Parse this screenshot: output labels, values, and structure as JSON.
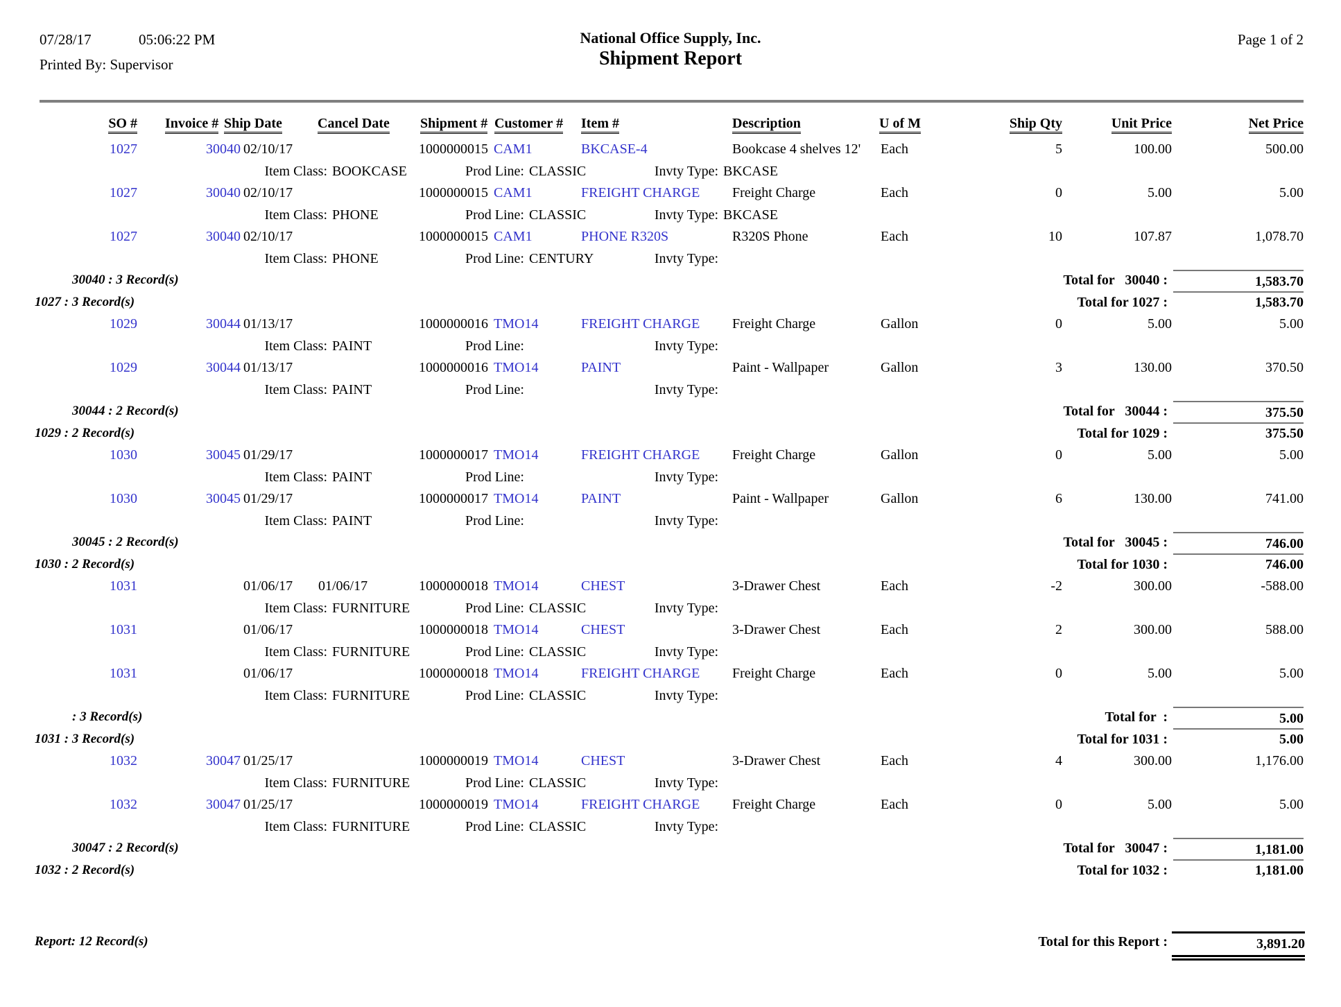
{
  "meta": {
    "date": "07/28/17",
    "time": "05:06:22 PM",
    "printed_by": "Printed By: Supervisor",
    "company": "National Office Supply, Inc.",
    "title": "Shipment Report",
    "page": "Page 1 of 2"
  },
  "columns": [
    "SO #",
    "Invoice #",
    "Ship Date",
    "Cancel Date",
    "Shipment #",
    "Customer #",
    "Item #",
    "Description",
    "U of M",
    "Ship Qty",
    "Unit Price",
    "Net Price"
  ],
  "labels": {
    "item_class": "Item Class:",
    "prod_line": "Prod Line:",
    "invty_type": "Invty Type:"
  },
  "colors": {
    "link_blue": "#3333CC",
    "rule_gray": "#808080"
  },
  "lines": [
    {
      "type": "item",
      "so": "1027",
      "invoice": "30040",
      "ship_date": "02/10/17",
      "cancel_date": "",
      "shipment": "1000000015",
      "customer": "CAM1",
      "item": "BKCASE-4",
      "desc": "Bookcase 4 shelves 12'",
      "uom": "Each",
      "qty": "5",
      "unit": "100.00",
      "net": "500.00"
    },
    {
      "type": "sub",
      "item_class": "BOOKCASE",
      "prod_line": "CLASSIC",
      "invty_type": "BKCASE"
    },
    {
      "type": "item",
      "so": "1027",
      "invoice": "30040",
      "ship_date": "02/10/17",
      "cancel_date": "",
      "shipment": "1000000015",
      "customer": "CAM1",
      "item": "FREIGHT CHARGE",
      "desc": "Freight Charge",
      "uom": "Each",
      "qty": "0",
      "unit": "5.00",
      "net": "5.00"
    },
    {
      "type": "sub",
      "item_class": "PHONE",
      "prod_line": "CLASSIC",
      "invty_type": "BKCASE"
    },
    {
      "type": "item",
      "so": "1027",
      "invoice": "30040",
      "ship_date": "02/10/17",
      "cancel_date": "",
      "shipment": "1000000015",
      "customer": "CAM1",
      "item": "PHONE R320S",
      "desc": "R320S Phone",
      "uom": "Each",
      "qty": "10",
      "unit": "107.87",
      "net": "1,078.70"
    },
    {
      "type": "sub",
      "item_class": "PHONE",
      "prod_line": "CENTURY",
      "invty_type": ""
    },
    {
      "type": "invoice_total",
      "left": "30040 : 3 Record(s)",
      "label": "Total for   30040 :",
      "amount": "1,583.70"
    },
    {
      "type": "so_total",
      "left": "1027 : 3 Record(s)",
      "label": "Total for 1027 :",
      "amount": "1,583.70"
    },
    {
      "type": "item",
      "so": "1029",
      "invoice": "30044",
      "ship_date": "01/13/17",
      "cancel_date": "",
      "shipment": "1000000016",
      "customer": "TMO14",
      "item": "FREIGHT CHARGE",
      "desc": "Freight Charge",
      "uom": "Gallon",
      "qty": "0",
      "unit": "5.00",
      "net": "5.00"
    },
    {
      "type": "sub",
      "item_class": "PAINT",
      "prod_line": "",
      "invty_type": ""
    },
    {
      "type": "item",
      "so": "1029",
      "invoice": "30044",
      "ship_date": "01/13/17",
      "cancel_date": "",
      "shipment": "1000000016",
      "customer": "TMO14",
      "item": "PAINT",
      "desc": "Paint - Wallpaper",
      "uom": "Gallon",
      "qty": "3",
      "unit": "130.00",
      "net": "370.50"
    },
    {
      "type": "sub",
      "item_class": "PAINT",
      "prod_line": "",
      "invty_type": ""
    },
    {
      "type": "invoice_total",
      "left": "30044 : 2 Record(s)",
      "label": "Total for   30044 :",
      "amount": "375.50"
    },
    {
      "type": "so_total",
      "left": "1029 : 2 Record(s)",
      "label": "Total for 1029 :",
      "amount": "375.50"
    },
    {
      "type": "item",
      "so": "1030",
      "invoice": "30045",
      "ship_date": "01/29/17",
      "cancel_date": "",
      "shipment": "1000000017",
      "customer": "TMO14",
      "item": "FREIGHT CHARGE",
      "desc": "Freight Charge",
      "uom": "Gallon",
      "qty": "0",
      "unit": "5.00",
      "net": "5.00"
    },
    {
      "type": "sub",
      "item_class": "PAINT",
      "prod_line": "",
      "invty_type": ""
    },
    {
      "type": "item",
      "so": "1030",
      "invoice": "30045",
      "ship_date": "01/29/17",
      "cancel_date": "",
      "shipment": "1000000017",
      "customer": "TMO14",
      "item": "PAINT",
      "desc": "Paint - Wallpaper",
      "uom": "Gallon",
      "qty": "6",
      "unit": "130.00",
      "net": "741.00"
    },
    {
      "type": "sub",
      "item_class": "PAINT",
      "prod_line": "",
      "invty_type": ""
    },
    {
      "type": "invoice_total",
      "left": "30045 : 2 Record(s)",
      "label": "Total for   30045 :",
      "amount": "746.00"
    },
    {
      "type": "so_total",
      "left": "1030 : 2 Record(s)",
      "label": "Total for 1030 :",
      "amount": "746.00"
    },
    {
      "type": "item",
      "so": "1031",
      "invoice": "",
      "ship_date": "01/06/17",
      "cancel_date": "01/06/17",
      "shipment": "1000000018",
      "customer": "TMO14",
      "item": "CHEST",
      "desc": "3-Drawer Chest",
      "uom": "Each",
      "qty": "-2",
      "unit": "300.00",
      "net": "-588.00"
    },
    {
      "type": "sub",
      "item_class": "FURNITURE",
      "prod_line": "CLASSIC",
      "invty_type": ""
    },
    {
      "type": "item",
      "so": "1031",
      "invoice": "",
      "ship_date": "01/06/17",
      "cancel_date": "",
      "shipment": "1000000018",
      "customer": "TMO14",
      "item": "CHEST",
      "desc": "3-Drawer Chest",
      "uom": "Each",
      "qty": "2",
      "unit": "300.00",
      "net": "588.00"
    },
    {
      "type": "sub",
      "item_class": "FURNITURE",
      "prod_line": "CLASSIC",
      "invty_type": ""
    },
    {
      "type": "item",
      "so": "1031",
      "invoice": "",
      "ship_date": "01/06/17",
      "cancel_date": "",
      "shipment": "1000000018",
      "customer": "TMO14",
      "item": "FREIGHT CHARGE",
      "desc": "Freight Charge",
      "uom": "Each",
      "qty": "0",
      "unit": "5.00",
      "net": "5.00"
    },
    {
      "type": "sub",
      "item_class": "FURNITURE",
      "prod_line": "CLASSIC",
      "invty_type": ""
    },
    {
      "type": "invoice_total",
      "left": ": 3 Record(s)",
      "label": "Total for  :",
      "amount": "5.00"
    },
    {
      "type": "so_total",
      "left": "1031 : 3 Record(s)",
      "label": "Total for 1031 :",
      "amount": "5.00"
    },
    {
      "type": "item",
      "so": "1032",
      "invoice": "30047",
      "ship_date": "01/25/17",
      "cancel_date": "",
      "shipment": "1000000019",
      "customer": "TMO14",
      "item": "CHEST",
      "desc": "3-Drawer Chest",
      "uom": "Each",
      "qty": "4",
      "unit": "300.00",
      "net": "1,176.00"
    },
    {
      "type": "sub",
      "item_class": "FURNITURE",
      "prod_line": "CLASSIC",
      "invty_type": ""
    },
    {
      "type": "item",
      "so": "1032",
      "invoice": "30047",
      "ship_date": "01/25/17",
      "cancel_date": "",
      "shipment": "1000000019",
      "customer": "TMO14",
      "item": "FREIGHT CHARGE",
      "desc": "Freight Charge",
      "uom": "Each",
      "qty": "0",
      "unit": "5.00",
      "net": "5.00"
    },
    {
      "type": "sub",
      "item_class": "FURNITURE",
      "prod_line": "CLASSIC",
      "invty_type": ""
    },
    {
      "type": "invoice_total",
      "left": "30047 : 2 Record(s)",
      "label": "Total for   30047 :",
      "amount": "1,181.00"
    },
    {
      "type": "so_total",
      "left": "1032 : 2 Record(s)",
      "label": "Total for 1032 :",
      "amount": "1,181.00"
    },
    {
      "type": "report_total",
      "left": "Report: 12 Record(s)",
      "label": "Total for this Report :",
      "amount": "3,891.20"
    }
  ]
}
